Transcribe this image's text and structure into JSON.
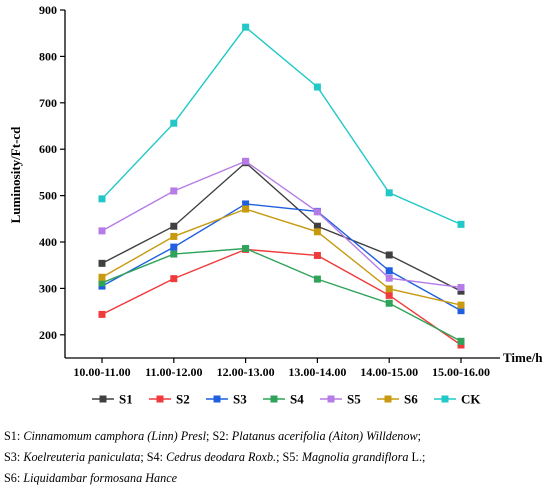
{
  "chart_data": {
    "type": "line",
    "categories": [
      "10.00-11.00",
      "11.00-12.00",
      "12.00-13.00",
      "13.00-14.00",
      "14.00-15.00",
      "15.00-16.00"
    ],
    "series": [
      {
        "name": "S1",
        "color": "#404040",
        "values": [
          354,
          434,
          571,
          434,
          372,
          294
        ]
      },
      {
        "name": "S2",
        "color": "#ef3b3b",
        "values": [
          244,
          321,
          384,
          371,
          285,
          178
        ]
      },
      {
        "name": "S3",
        "color": "#1f5fe0",
        "values": [
          305,
          389,
          482,
          466,
          338,
          252
        ]
      },
      {
        "name": "S4",
        "color": "#2fa35a",
        "values": [
          312,
          374,
          386,
          320,
          268,
          186
        ]
      },
      {
        "name": "S5",
        "color": "#b57be6",
        "values": [
          424,
          510,
          574,
          465,
          322,
          302
        ]
      },
      {
        "name": "S6",
        "color": "#c89a10",
        "values": [
          324,
          412,
          471,
          422,
          299,
          264
        ]
      },
      {
        "name": "CK",
        "color": "#22c8c8",
        "values": [
          493,
          656,
          863,
          734,
          506,
          438
        ]
      }
    ],
    "ylabel": "Luminosity/Ft-cd",
    "xlabel": "Time/h",
    "ylim": [
      150,
      900
    ],
    "yticks": [
      "200",
      "300",
      "400",
      "500",
      "600",
      "700",
      "800",
      "900"
    ],
    "grid": false,
    "legend_position": "bottom"
  },
  "caption": {
    "lines": [
      [
        {
          "code": "S1: ",
          "species": "Cinnamomum camphora (Linn) Presl",
          "sep": "; "
        },
        {
          "code": "S2: ",
          "species": "Platanus acerifolia (Aiton) Willdenow",
          "sep": ";"
        }
      ],
      [
        {
          "code": "S3: ",
          "species": "Koelreuteria paniculata",
          "sep": "; "
        },
        {
          "code": "S4: ",
          "species": "Cedrus deodara Roxb.",
          "sep": "; "
        },
        {
          "code": "S5: ",
          "species": "Magnolia grandiflora",
          "sep": " L.;"
        }
      ],
      [
        {
          "code": "S6: ",
          "species": "Liquidambar formosana Hance",
          "sep": ""
        }
      ]
    ]
  }
}
